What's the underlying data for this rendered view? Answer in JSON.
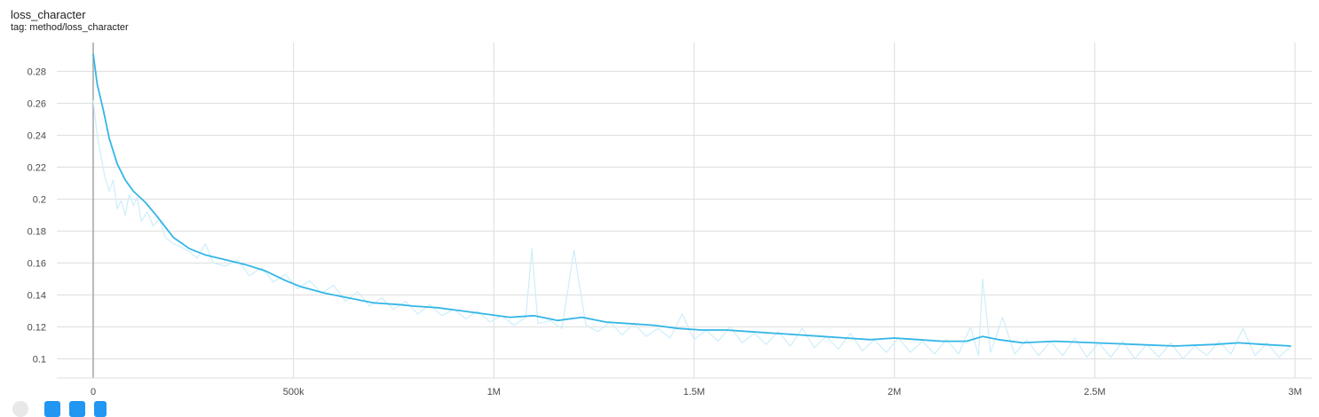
{
  "card": {
    "title": "loss_character",
    "tag": "tag: method/loss_character"
  },
  "colors": {
    "smoothed": "#34b6e6",
    "raw": "#cdeef9",
    "grid": "#dddddd",
    "zero_axis": "#9e9e9e",
    "tick_text": "#4a4a4a"
  },
  "chart_data": {
    "type": "line",
    "title": "loss_character",
    "xlabel": "",
    "ylabel": "",
    "xlim": [
      0,
      3000000
    ],
    "ylim": [
      0.088,
      0.298
    ],
    "x_ticks": [
      0,
      500000,
      1000000,
      1500000,
      2000000,
      2500000,
      3000000
    ],
    "x_tick_labels": [
      "0",
      "500k",
      "1M",
      "1.5M",
      "2M",
      "2.5M",
      "3M"
    ],
    "y_ticks": [
      0.1,
      0.12,
      0.14,
      0.16,
      0.18,
      0.2,
      0.22,
      0.24,
      0.26,
      0.28
    ],
    "y_tick_labels": [
      "0.1",
      "0.12",
      "0.14",
      "0.16",
      "0.18",
      "0.2",
      "0.22",
      "0.24",
      "0.26",
      "0.28"
    ],
    "grid": true,
    "legend": "none",
    "series": [
      {
        "role": "smoothed",
        "x": [
          0,
          10000,
          25000,
          40000,
          60000,
          80000,
          100000,
          130000,
          160000,
          200000,
          240000,
          280000,
          330000,
          380000,
          430000,
          480000,
          520000,
          580000,
          640000,
          700000,
          760000,
          800000,
          860000,
          920000,
          980000,
          1040000,
          1100000,
          1160000,
          1220000,
          1280000,
          1340000,
          1400000,
          1460000,
          1520000,
          1580000,
          1640000,
          1700000,
          1760000,
          1820000,
          1880000,
          1940000,
          2000000,
          2060000,
          2120000,
          2180000,
          2220000,
          2260000,
          2320000,
          2400000,
          2500000,
          2600000,
          2700000,
          2800000,
          2860000,
          2920000,
          2990000
        ],
        "y": [
          0.291,
          0.272,
          0.256,
          0.238,
          0.222,
          0.212,
          0.205,
          0.198,
          0.189,
          0.176,
          0.169,
          0.165,
          0.162,
          0.159,
          0.155,
          0.149,
          0.145,
          0.141,
          0.138,
          0.135,
          0.134,
          0.133,
          0.132,
          0.13,
          0.128,
          0.126,
          0.127,
          0.124,
          0.126,
          0.123,
          0.122,
          0.121,
          0.119,
          0.118,
          0.118,
          0.117,
          0.116,
          0.115,
          0.114,
          0.113,
          0.112,
          0.113,
          0.112,
          0.111,
          0.111,
          0.114,
          0.112,
          0.11,
          0.111,
          0.11,
          0.109,
          0.108,
          0.109,
          0.11,
          0.109,
          0.108
        ]
      },
      {
        "role": "raw",
        "x": [
          0,
          10000,
          20000,
          30000,
          40000,
          50000,
          60000,
          70000,
          80000,
          90000,
          100000,
          110000,
          120000,
          135000,
          150000,
          165000,
          180000,
          200000,
          220000,
          240000,
          260000,
          280000,
          300000,
          330000,
          360000,
          390000,
          420000,
          450000,
          480000,
          510000,
          540000,
          570000,
          600000,
          630000,
          660000,
          690000,
          720000,
          750000,
          780000,
          810000,
          840000,
          870000,
          900000,
          930000,
          960000,
          990000,
          1020000,
          1050000,
          1080000,
          1095000,
          1110000,
          1140000,
          1170000,
          1200000,
          1230000,
          1260000,
          1290000,
          1320000,
          1350000,
          1380000,
          1410000,
          1440000,
          1470000,
          1500000,
          1530000,
          1560000,
          1590000,
          1620000,
          1650000,
          1680000,
          1710000,
          1740000,
          1770000,
          1800000,
          1830000,
          1860000,
          1890000,
          1920000,
          1950000,
          1980000,
          2010000,
          2040000,
          2070000,
          2100000,
          2130000,
          2160000,
          2190000,
          2210000,
          2220000,
          2240000,
          2270000,
          2300000,
          2330000,
          2360000,
          2390000,
          2420000,
          2450000,
          2480000,
          2510000,
          2540000,
          2570000,
          2600000,
          2630000,
          2660000,
          2690000,
          2720000,
          2750000,
          2780000,
          2810000,
          2840000,
          2870000,
          2900000,
          2930000,
          2960000,
          2990000
        ],
        "y": [
          0.262,
          0.24,
          0.226,
          0.213,
          0.205,
          0.212,
          0.194,
          0.199,
          0.19,
          0.203,
          0.196,
          0.201,
          0.186,
          0.192,
          0.183,
          0.188,
          0.176,
          0.172,
          0.17,
          0.167,
          0.163,
          0.172,
          0.16,
          0.158,
          0.162,
          0.152,
          0.157,
          0.148,
          0.153,
          0.144,
          0.149,
          0.141,
          0.146,
          0.136,
          0.142,
          0.133,
          0.138,
          0.131,
          0.136,
          0.128,
          0.134,
          0.127,
          0.131,
          0.125,
          0.13,
          0.123,
          0.127,
          0.121,
          0.126,
          0.169,
          0.122,
          0.124,
          0.119,
          0.168,
          0.121,
          0.117,
          0.123,
          0.115,
          0.122,
          0.114,
          0.119,
          0.113,
          0.128,
          0.112,
          0.118,
          0.111,
          0.12,
          0.11,
          0.116,
          0.109,
          0.117,
          0.108,
          0.119,
          0.107,
          0.114,
          0.106,
          0.116,
          0.105,
          0.112,
          0.104,
          0.113,
          0.104,
          0.111,
          0.103,
          0.112,
          0.103,
          0.12,
          0.102,
          0.15,
          0.104,
          0.126,
          0.103,
          0.112,
          0.102,
          0.111,
          0.102,
          0.113,
          0.101,
          0.11,
          0.101,
          0.111,
          0.1,
          0.109,
          0.101,
          0.11,
          0.1,
          0.108,
          0.102,
          0.111,
          0.103,
          0.119,
          0.102,
          0.11,
          0.101,
          0.108
        ]
      }
    ]
  }
}
